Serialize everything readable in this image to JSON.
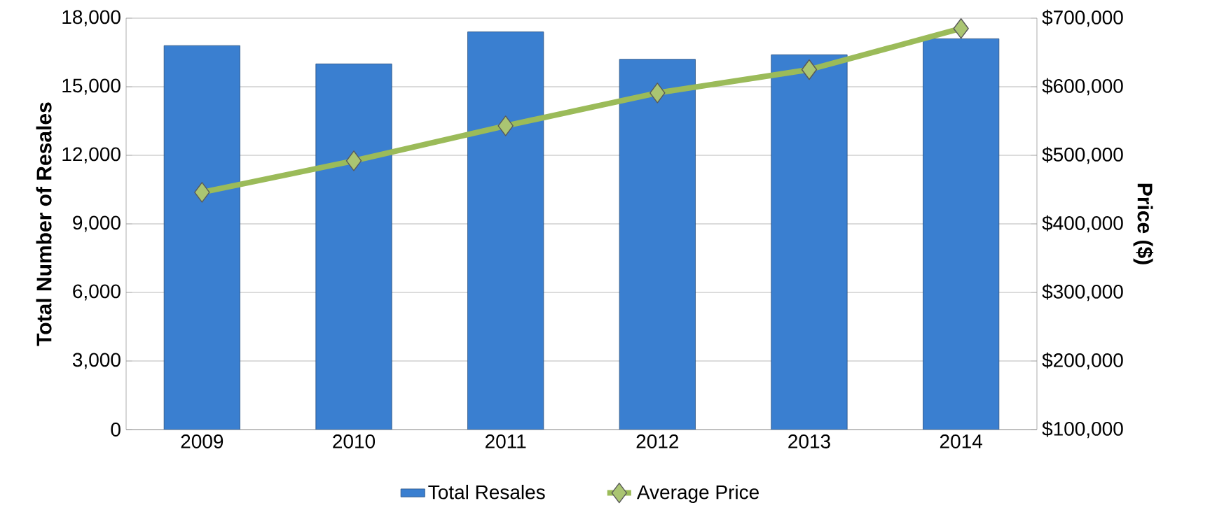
{
  "chart_data": {
    "type": "bar",
    "categories": [
      "2009",
      "2010",
      "2011",
      "2012",
      "2013",
      "2014"
    ],
    "series": [
      {
        "name": "Total Resales",
        "color": "#3a7fd0",
        "values": [
          16800,
          16000,
          17400,
          16200,
          16400,
          17100
        ]
      },
      {
        "name": "Average Price",
        "type": "line",
        "axis": "y2",
        "color": "#9bbb59",
        "marker": "diamond",
        "values": [
          446000,
          492000,
          543000,
          591000,
          625000,
          685000
        ]
      }
    ],
    "ylabel": "Total Number of Resales",
    "y2label": "Price ($)",
    "ylim": [
      0,
      18000
    ],
    "yticks": [
      {
        "value": 0,
        "label": "0"
      },
      {
        "value": 3000,
        "label": "3,000"
      },
      {
        "value": 6000,
        "label": "6,000"
      },
      {
        "value": 9000,
        "label": "9,000"
      },
      {
        "value": 12000,
        "label": "12,000"
      },
      {
        "value": 15000,
        "label": "15,000"
      },
      {
        "value": 18000,
        "label": "18,000"
      }
    ],
    "y2lim": [
      100000,
      700000
    ],
    "y2ticks": [
      {
        "value": 100000,
        "label": "$100,000"
      },
      {
        "value": 200000,
        "label": "$200,000"
      },
      {
        "value": 300000,
        "label": "$300,000"
      },
      {
        "value": 400000,
        "label": "$400,000"
      },
      {
        "value": 500000,
        "label": "$500,000"
      },
      {
        "value": 600000,
        "label": "$600,000"
      },
      {
        "value": 700000,
        "label": "$700,000"
      }
    ],
    "grid": "y",
    "legend": "bottom"
  }
}
